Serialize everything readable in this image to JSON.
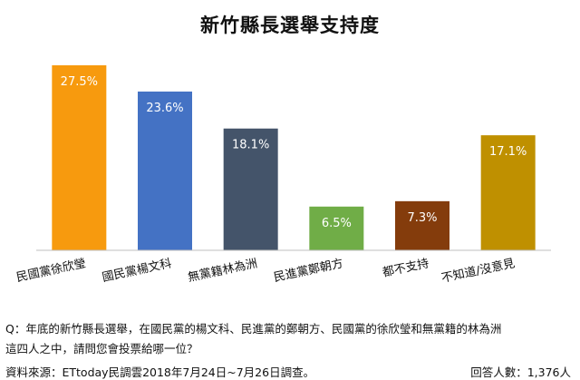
{
  "chart_data": {
    "type": "bar",
    "title": "新竹縣長選舉支持度",
    "categories": [
      "民國黨徐欣瑩",
      "國民黨楊文科",
      "無黨籍林為洲",
      "民進黨鄭朝方",
      "都不支持",
      "不知道/沒意見"
    ],
    "values": [
      27.5,
      23.6,
      18.1,
      6.5,
      7.3,
      17.1
    ],
    "value_labels": [
      "27.5%",
      "23.6%",
      "18.1%",
      "6.5%",
      "7.3%",
      "17.1%"
    ],
    "colors": [
      "#F79A0E",
      "#4472C4",
      "#44546A",
      "#70AD47",
      "#843C0C",
      "#BF9000"
    ],
    "xlabel": "",
    "ylabel": "",
    "ylim": [
      0,
      27.5
    ],
    "grid": false
  },
  "notes": {
    "question_line1": "Q：年底的新竹縣長選舉，在國民黨的楊文科、民進黨的鄭朝方、民國黨的徐欣瑩和無黨籍的林為洲",
    "question_line2": "這四人之中，請問您會投票給哪一位？",
    "source": "資料來源：ETtoday民調雲2018年7月24日~7月26日調查。",
    "respondents": "回答人數：1,376人"
  }
}
